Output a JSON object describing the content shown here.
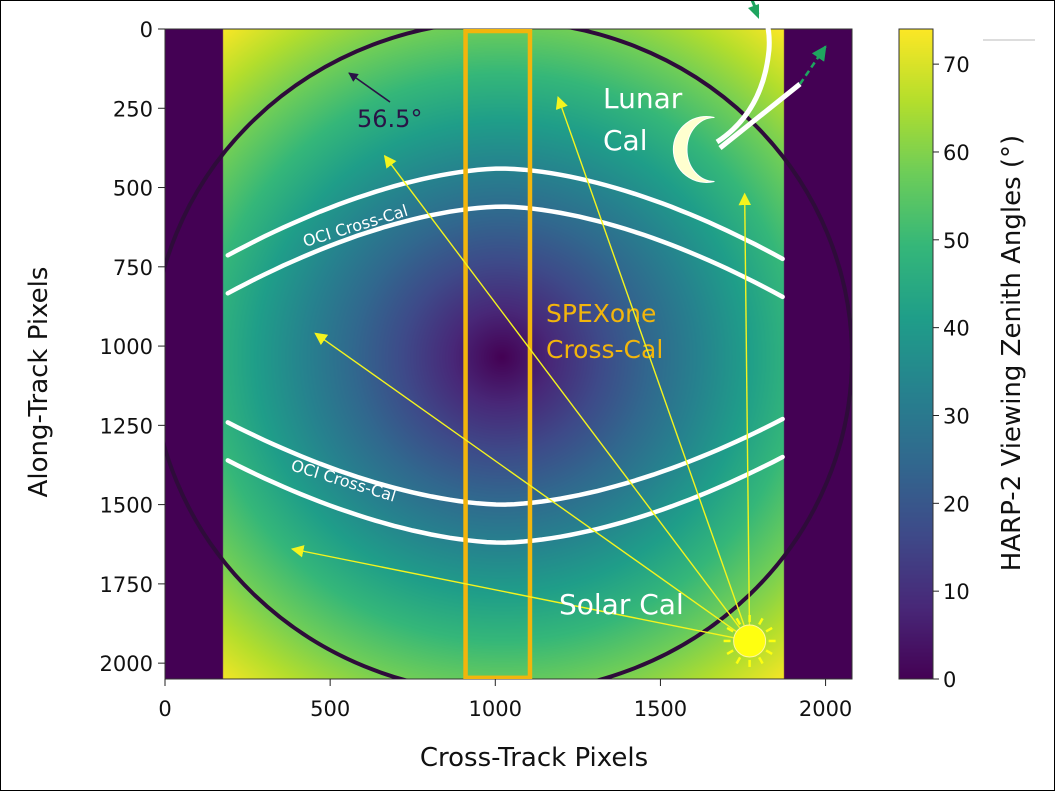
{
  "chart_data": {
    "type": "heatmap",
    "title": "",
    "xlabel": "Cross-Track Pixels",
    "ylabel": "Along-Track Pixels",
    "xlim": [
      0,
      2080
    ],
    "ylim": [
      2050,
      0
    ],
    "x_ticks": [
      "0",
      "500",
      "1000",
      "1500",
      "2000"
    ],
    "x_tick_values": [
      0,
      500,
      1000,
      1500,
      2000
    ],
    "y_ticks": [
      "0",
      "250",
      "500",
      "750",
      "1000",
      "1250",
      "1500",
      "1750",
      "2000"
    ],
    "y_tick_values": [
      0,
      250,
      500,
      750,
      1000,
      1250,
      1500,
      1750,
      2000
    ],
    "colorbar": {
      "label": "HARP-2 Viewing Zenith Angles (°)",
      "ticks": [
        "0",
        "10",
        "20",
        "30",
        "40",
        "50",
        "60",
        "70"
      ],
      "tick_values": [
        0,
        10,
        20,
        30,
        40,
        50,
        60,
        70
      ],
      "range": [
        0,
        74
      ],
      "colormap": "viridis"
    },
    "field": {
      "center": [
        1020,
        1035
      ],
      "valid_x_range": [
        175,
        1875
      ],
      "outside_value": 0,
      "max_angle_deg": 74
    },
    "fov_circle": {
      "center": [
        1020,
        1035
      ],
      "radius": 1060,
      "angle_label": "56.5°"
    },
    "spexone_band": {
      "x_range": [
        910,
        1105
      ],
      "y_range": [
        0,
        2040
      ],
      "label_lines": [
        "SPEXone",
        "Cross-Cal"
      ]
    },
    "oci_curves": [
      {
        "label": "OCI Cross-Cal",
        "x_range": [
          190,
          1870
        ],
        "y_center": 440,
        "y_edge": 725
      },
      {
        "label": "",
        "x_range": [
          190,
          1870
        ],
        "y_center": 560,
        "y_edge": 845
      },
      {
        "label": "OCI Cross-Cal",
        "x_range": [
          190,
          1870
        ],
        "y_center": 1500,
        "y_edge": 1230
      },
      {
        "label": "",
        "x_range": [
          190,
          1870
        ],
        "y_center": 1620,
        "y_edge": 1350
      }
    ],
    "solar_cal": {
      "label": "Solar Cal",
      "sun": [
        1770,
        1930
      ],
      "rays_to": [
        [
          385,
          1640
        ],
        [
          455,
          960
        ],
        [
          665,
          400
        ],
        [
          1190,
          215
        ],
        [
          1755,
          520
        ]
      ]
    },
    "lunar_cal": {
      "label_lines": [
        "Lunar",
        "Cal"
      ],
      "moon": [
        1615,
        380
      ],
      "arrows_to": [
        [
          2000,
          55
        ],
        [
          1775,
          -35
        ]
      ]
    },
    "colors": {
      "band": "#f2b50c",
      "ray": "#f4f41e",
      "curve": "#ffffff",
      "moon": "#ffffcf",
      "sun": "#ffff10",
      "circle": "#2e0c3a",
      "green_arrow": "#1fa55f",
      "angle_arrow": "#2a1346"
    }
  }
}
